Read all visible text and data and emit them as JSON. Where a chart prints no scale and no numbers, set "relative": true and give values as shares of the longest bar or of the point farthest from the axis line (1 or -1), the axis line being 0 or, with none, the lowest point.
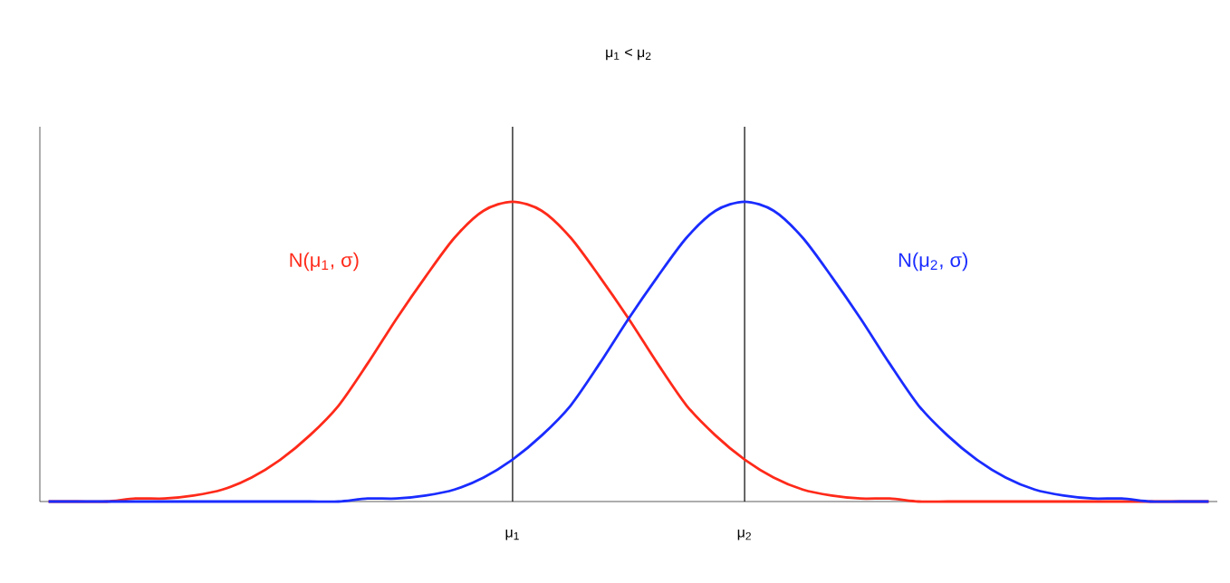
{
  "chart_data": {
    "type": "line",
    "title": "μ$_{1}$ < μ$_{2}$",
    "relative": true,
    "tick_labels": "x",
    "marker": "none",
    "line_style": "solid",
    "categories": [
      null,
      null,
      null,
      null,
      null,
      null,
      null,
      null,
      null,
      null,
      null,
      null,
      null,
      null,
      null,
      null,
      "μ$_{1}$",
      null,
      null,
      null,
      null,
      null,
      null,
      null,
      "μ$_{2}$",
      null,
      null,
      null,
      null,
      null,
      null,
      null,
      null,
      null,
      null,
      null,
      null,
      null,
      null,
      null,
      null
    ],
    "ref_lines": [
      {
        "axis": "x",
        "value": "μ$_{1}$",
        "color": "#000000"
      },
      {
        "axis": "x",
        "value": "μ$_{2}$",
        "color": "#000000"
      }
    ],
    "series": [
      {
        "name": "N(μ$_{1}$, σ)",
        "color": "#ff2a1a",
        "values": [
          0,
          0,
          0,
          0.01,
          0.01,
          0.02,
          0.04,
          0.08,
          0.14,
          0.22,
          0.32,
          0.46,
          0.61,
          0.75,
          0.88,
          0.97,
          1,
          0.97,
          0.88,
          0.75,
          0.61,
          0.46,
          0.32,
          0.22,
          0.14,
          0.08,
          0.04,
          0.02,
          0.01,
          0.01,
          0,
          0,
          0,
          0,
          0,
          0,
          0,
          0,
          0,
          0,
          0
        ]
      },
      {
        "name": "N(μ$_{2}$, σ)",
        "color": "#1a2cff",
        "values": [
          0,
          0,
          0,
          0,
          0,
          0,
          0,
          0,
          0,
          0,
          0,
          0.01,
          0.01,
          0.02,
          0.04,
          0.08,
          0.14,
          0.22,
          0.32,
          0.46,
          0.61,
          0.75,
          0.88,
          0.97,
          1,
          0.97,
          0.88,
          0.75,
          0.61,
          0.46,
          0.32,
          0.22,
          0.14,
          0.08,
          0.04,
          0.02,
          0.01,
          0.01,
          0,
          0,
          0
        ]
      }
    ]
  }
}
